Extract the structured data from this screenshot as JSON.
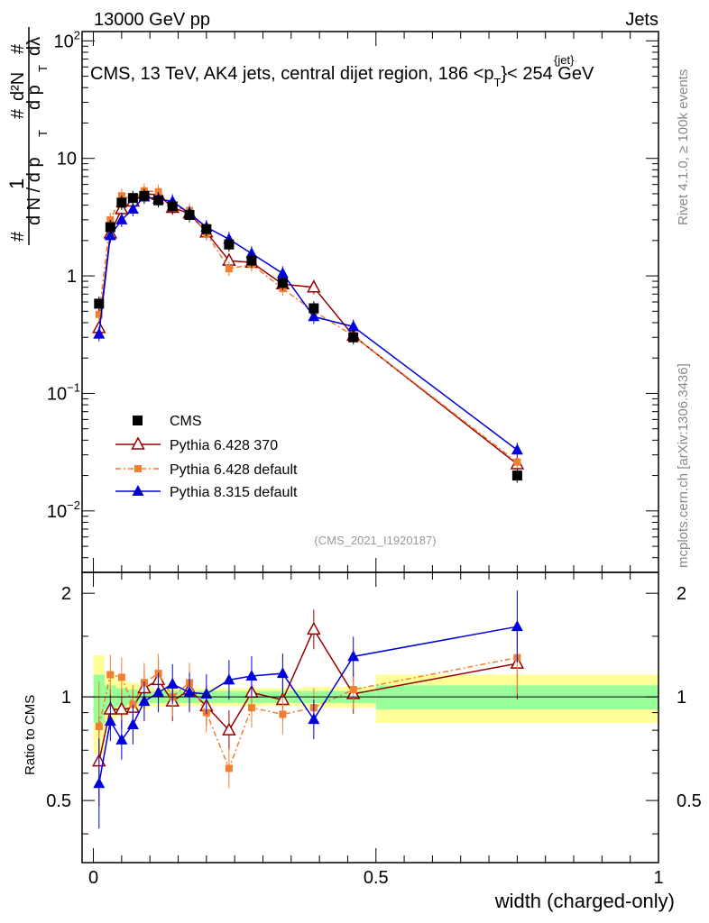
{
  "header": {
    "left": "13000 GeV pp",
    "right": "Jets",
    "title_main": "CMS, 13 TeV, AK4 jets, central dijet region, 186 <p",
    "title_sub": "T",
    "title_sup": "{jet}",
    "title_tail": "}< 254 GeV"
  },
  "side": {
    "rivet": "Rivet 4.1.0, ≥ 100k events",
    "mcplots": "mcplots.cern.ch [arXiv:1306.3436]"
  },
  "ylabel_top": {
    "hash1": "#",
    "one": "1",
    "dN": "d N / d p",
    "T1": "T",
    "hash2": "#",
    "d2N": "d²N",
    "dpT": "d p",
    "T2": "T",
    "dlambda": "dλ",
    "hash3": "#"
  },
  "watermark": "(CMS_2021_I1920187)",
  "ratio_ylabel": "Ratio to CMS",
  "xlabel": "width (charged-only)",
  "legend": [
    {
      "label": "CMS",
      "color": "#000000",
      "marker": "square"
    },
    {
      "label": "Pythia 6.428 370",
      "color": "#990000",
      "marker": "triangle-open"
    },
    {
      "label": "Pythia 6.428 default",
      "color": "#f07f30",
      "marker": "square-small"
    },
    {
      "label": "Pythia 8.315 default",
      "color": "#0000dd",
      "marker": "triangle"
    }
  ],
  "chart_data": {
    "type": "line",
    "x_range": [
      -0.02,
      1.0
    ],
    "xticks": [
      {
        "v": 0,
        "label": "0"
      },
      {
        "v": 0.5,
        "label": "0.5"
      },
      {
        "v": 1,
        "label": "1"
      }
    ],
    "main": {
      "yscale": "log",
      "ylim": [
        0.003,
        120
      ],
      "yticks": [
        {
          "v": 100,
          "label": "10",
          "sup": "2"
        },
        {
          "v": 10,
          "label": "10",
          "sup": ""
        },
        {
          "v": 1,
          "label": "1",
          "sup": ""
        },
        {
          "v": 0.1,
          "label": "10",
          "sup": "−1"
        },
        {
          "v": 0.01,
          "label": "10",
          "sup": "−2"
        }
      ],
      "x": [
        0.01,
        0.03,
        0.05,
        0.07,
        0.09,
        0.115,
        0.14,
        0.17,
        0.2,
        0.24,
        0.28,
        0.335,
        0.39,
        0.46,
        0.75
      ],
      "series": [
        {
          "name": "CMS",
          "values": [
            0.58,
            2.6,
            4.2,
            4.6,
            4.8,
            4.4,
            3.9,
            3.3,
            2.5,
            1.85,
            1.35,
            0.87,
            0.53,
            0.3,
            0.02
          ]
        },
        {
          "name": "Pythia 6.428 370",
          "values": [
            0.36,
            2.3,
            3.7,
            4.3,
            5.0,
            4.9,
            3.8,
            3.4,
            2.35,
            1.35,
            1.3,
            0.85,
            0.8,
            0.31,
            0.025
          ]
        },
        {
          "name": "Pythia 6.428 default",
          "values": [
            0.47,
            3.0,
            4.8,
            4.5,
            5.3,
            5.2,
            3.9,
            3.6,
            2.3,
            1.15,
            1.25,
            0.78,
            0.5,
            0.31,
            0.026
          ]
        },
        {
          "name": "Pythia 8.315 default",
          "values": [
            0.32,
            2.2,
            3.0,
            3.7,
            4.7,
            4.5,
            4.3,
            3.4,
            2.6,
            2.05,
            1.55,
            1.05,
            0.45,
            0.37,
            0.033
          ]
        }
      ]
    },
    "ratio": {
      "ylim": [
        0.33,
        2.3
      ],
      "yticks": [
        {
          "v": 2,
          "label": "2"
        },
        {
          "v": 1,
          "label": "1"
        },
        {
          "v": 0.5,
          "label": "0.5"
        }
      ],
      "x": [
        0.01,
        0.03,
        0.05,
        0.07,
        0.09,
        0.115,
        0.14,
        0.17,
        0.2,
        0.24,
        0.28,
        0.335,
        0.39,
        0.46,
        0.75
      ],
      "series": [
        {
          "name": "Pythia 6.428 370",
          "values": [
            0.65,
            0.92,
            0.92,
            0.93,
            1.06,
            1.12,
            0.97,
            1.05,
            0.94,
            0.8,
            1.03,
            0.98,
            1.57,
            1.02,
            1.25
          ]
        },
        {
          "name": "Pythia 6.428 default",
          "values": [
            0.82,
            1.16,
            1.14,
            0.95,
            1.1,
            1.17,
            1.0,
            1.1,
            0.9,
            0.62,
            0.93,
            0.89,
            0.93,
            1.05,
            1.3
          ]
        },
        {
          "name": "Pythia 8.315 default",
          "values": [
            0.56,
            0.85,
            0.75,
            0.83,
            0.97,
            1.03,
            1.09,
            1.03,
            1.02,
            1.12,
            1.15,
            1.17,
            0.86,
            1.31,
            1.6
          ]
        }
      ],
      "band_edges": [
        0.0,
        0.02,
        0.04,
        0.06,
        0.08,
        0.1,
        0.13,
        0.15,
        0.19,
        0.22,
        0.26,
        0.3,
        0.37,
        0.5,
        1.0
      ],
      "band_inner": [
        0.16,
        0.08,
        0.06,
        0.05,
        0.04,
        0.04,
        0.04,
        0.04,
        0.04,
        0.04,
        0.04,
        0.04,
        0.04,
        0.08,
        0.14
      ],
      "band_outer": [
        0.32,
        0.16,
        0.12,
        0.1,
        0.08,
        0.06,
        0.06,
        0.06,
        0.06,
        0.06,
        0.06,
        0.06,
        0.07,
        0.16,
        0.28
      ]
    }
  }
}
